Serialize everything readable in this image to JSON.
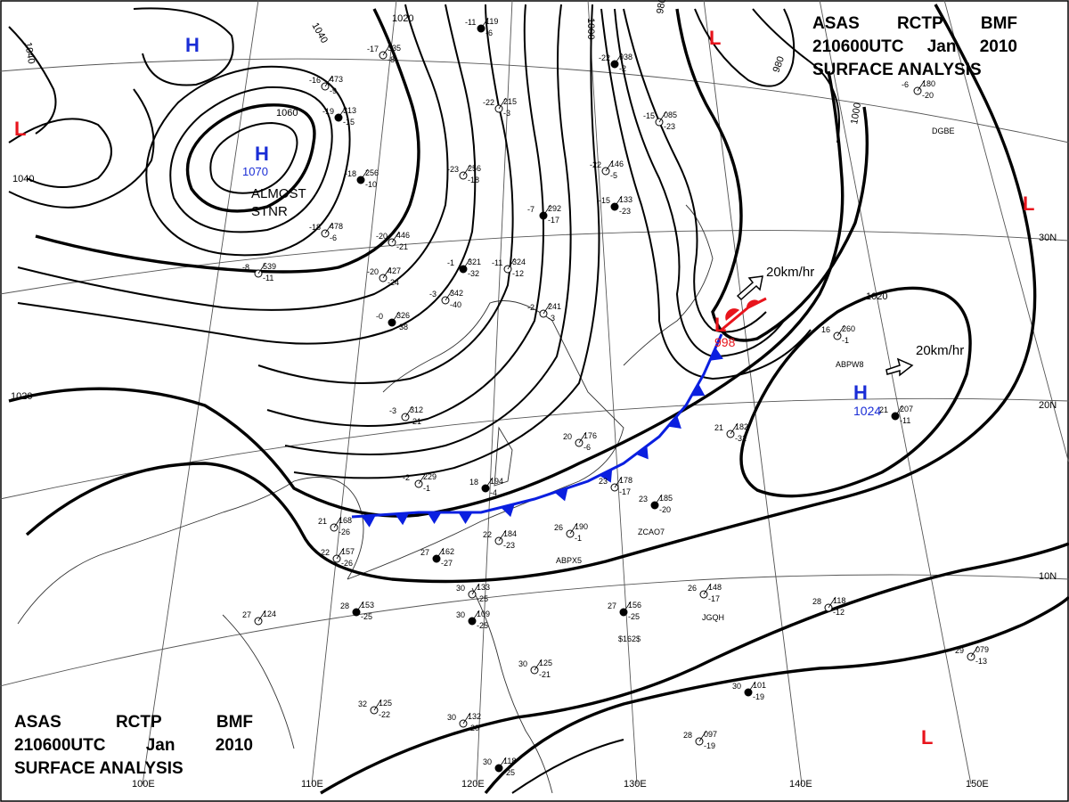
{
  "header": {
    "line1": [
      "ASAS",
      "RCTP",
      "BMF"
    ],
    "line2": [
      "210600UTC",
      "Jan",
      "2010"
    ],
    "line3": "SURFACE ANALYSIS"
  },
  "isobar_labels": [
    "1040",
    "1020",
    "1040",
    "1060",
    "1040",
    "1000",
    "980",
    "980",
    "1000",
    "1020",
    "1020"
  ],
  "pressure_centers": [
    {
      "type": "H",
      "value": "",
      "color": "#1a2dd6"
    },
    {
      "type": "H",
      "value": "1070",
      "color": "#1a2dd6"
    },
    {
      "type": "H",
      "value": "1024",
      "color": "#1a2dd6"
    },
    {
      "type": "L",
      "value": "",
      "color": "#e8141c"
    },
    {
      "type": "L",
      "value": "",
      "color": "#e8141c"
    },
    {
      "type": "L",
      "value": "",
      "color": "#e8141c"
    },
    {
      "type": "L",
      "value": "998",
      "color": "#e8141c"
    },
    {
      "type": "L",
      "value": "",
      "color": "#e8141c"
    }
  ],
  "annotations": {
    "almost_stnr": [
      "ALMOST",
      "STNR"
    ],
    "movement_1": "20km/hr",
    "movement_2": "20km/hr"
  },
  "longitude_labels": [
    "100E",
    "110E",
    "120E",
    "130E",
    "140E",
    "150E"
  ],
  "latitude_labels": [
    "30N",
    "20N",
    "10N"
  ],
  "stations": [
    {
      "t": "-11",
      "p": "119",
      "d": "-6"
    },
    {
      "t": "-17",
      "p": "335",
      "d": "-8"
    },
    {
      "t": "-22",
      "p": "215",
      "d": "-3"
    },
    {
      "t": "-22",
      "p": "938",
      "d": "-2"
    },
    {
      "t": "-20",
      "p": "446",
      "d": "-21"
    },
    {
      "t": "-11",
      "p": "324",
      "d": "-12"
    },
    {
      "t": "-7",
      "p": "292",
      "d": "-17"
    },
    {
      "t": "-18",
      "p": "478",
      "d": "-6"
    },
    {
      "t": "-20",
      "p": "427",
      "d": "-24"
    },
    {
      "t": "-0",
      "p": "326",
      "d": "-38"
    },
    {
      "t": "-3",
      "p": "312",
      "d": "-21"
    },
    {
      "t": "-2",
      "p": "229",
      "d": "-1"
    },
    {
      "t": "18",
      "p": "194",
      "d": "-4"
    },
    {
      "t": "20",
      "p": "176",
      "d": "-6"
    },
    {
      "t": "23",
      "p": "178",
      "d": "-17"
    },
    {
      "t": "23",
      "p": "185",
      "d": "-20"
    },
    {
      "t": "21",
      "p": "168",
      "d": "-26"
    },
    {
      "t": "22",
      "p": "157",
      "d": "-26"
    },
    {
      "t": "27",
      "p": "162",
      "d": "-27"
    },
    {
      "t": "22",
      "p": "184",
      "d": "-23"
    },
    {
      "t": "26",
      "p": "190",
      "d": "-1"
    },
    {
      "t": "28",
      "p": "153",
      "d": "-25"
    },
    {
      "t": "27",
      "p": "124",
      "d": ""
    },
    {
      "t": "30",
      "p": "133",
      "d": "-25"
    },
    {
      "t": "30",
      "p": "109",
      "d": "-25"
    },
    {
      "t": "32",
      "p": "125",
      "d": "-22"
    },
    {
      "t": "30",
      "p": "132",
      "d": "-20"
    },
    {
      "t": "30",
      "p": "118",
      "d": "-25"
    },
    {
      "t": "30",
      "p": "125",
      "d": "-21"
    },
    {
      "t": "28",
      "p": "097",
      "d": "-19"
    },
    {
      "t": "30",
      "p": "101",
      "d": "-19"
    },
    {
      "t": "29",
      "p": "079",
      "d": "-13"
    },
    {
      "t": "28",
      "p": "118",
      "d": "-12"
    },
    {
      "t": "27",
      "p": "156",
      "d": "-25"
    },
    {
      "t": "26",
      "p": "148",
      "d": "-17"
    },
    {
      "t": "21",
      "p": "182",
      "d": "-31"
    },
    {
      "t": "21",
      "p": "207",
      "d": "-11"
    },
    {
      "t": "16",
      "p": "260",
      "d": "-1"
    },
    {
      "t": "-6",
      "p": "180",
      "d": "-20"
    },
    {
      "t": "-1",
      "p": "321",
      "d": "-32"
    },
    {
      "t": "-3",
      "p": "342",
      "d": "-40"
    },
    {
      "t": "-2",
      "p": "241",
      "d": "-3"
    },
    {
      "t": "-18",
      "p": "256",
      "d": "-10"
    },
    {
      "t": "-23",
      "p": "256",
      "d": "-18"
    },
    {
      "t": "-22",
      "p": "146",
      "d": "-5"
    },
    {
      "t": "-15",
      "p": "133",
      "d": "-23"
    },
    {
      "t": "-15",
      "p": "085",
      "d": "-23"
    },
    {
      "t": "-8",
      "p": "539",
      "d": "-11"
    },
    {
      "t": "-19",
      "p": "313",
      "d": "-15"
    },
    {
      "t": "-16",
      "p": "473",
      "d": "-9"
    }
  ],
  "ship_calls": [
    "ZCAO7",
    "ABPX5",
    "JGQH",
    "$162$",
    "ABPW8",
    "DGBE"
  ],
  "colors": {
    "high": "#1a2dd6",
    "low": "#e8141c",
    "cold_front": "#0a1fe0",
    "warm_front": "#e8141c",
    "isobar": "#000000"
  }
}
